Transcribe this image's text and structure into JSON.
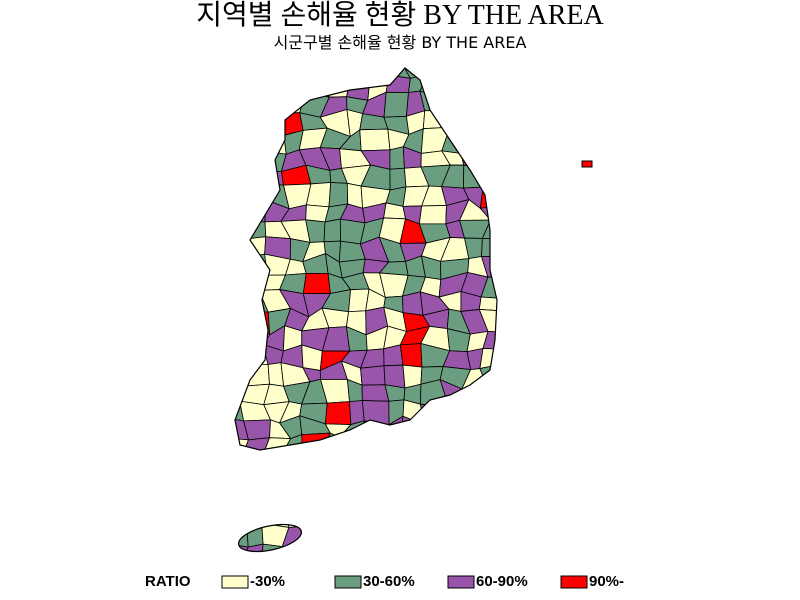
{
  "title": "지역별 손해율 현황 BY THE AREA",
  "subtitle": "시군구별 손해율 현황 BY THE AREA",
  "legend": {
    "title": "RATIO",
    "items": [
      {
        "label": "-30%",
        "color": "#ffffcc"
      },
      {
        "label": "30-60%",
        "color": "#6b9e80"
      },
      {
        "label": "60-90%",
        "color": "#9955aa"
      },
      {
        "label": "90%-",
        "color": "#ff0000"
      }
    ]
  }
}
